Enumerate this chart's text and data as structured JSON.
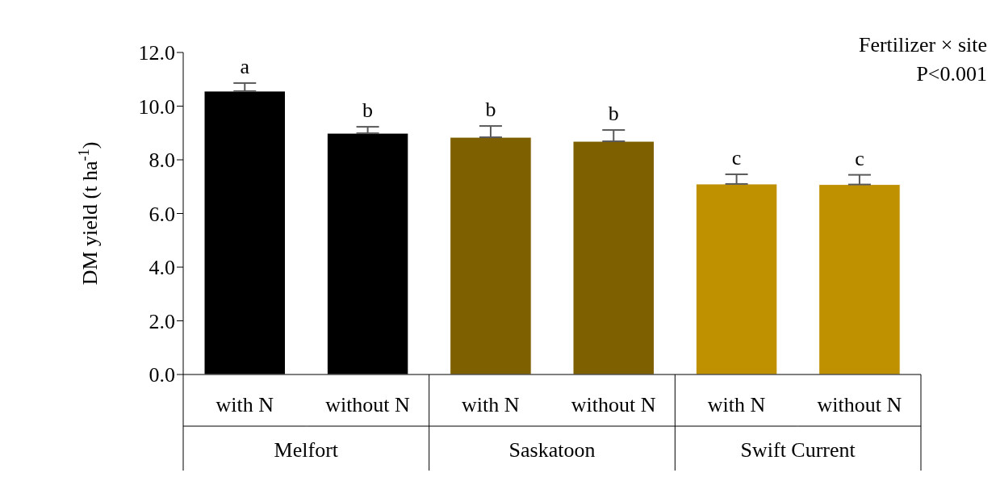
{
  "chart_data": {
    "type": "bar",
    "ylabel": "DM yield (t ha$^{-1}$)",
    "categories": [
      "with N",
      "without N",
      "with N",
      "without N",
      "with N",
      "without N"
    ],
    "values": [
      10.56,
      8.99,
      8.84,
      8.69,
      7.1,
      7.08
    ],
    "colors": [
      "#000000",
      "#000000",
      "#7f6000",
      "#7f6000",
      "#bf9000",
      "#bf9000"
    ],
    "errors": [
      [
        10.56,
        10.86
      ],
      [
        8.99,
        9.23
      ],
      [
        8.84,
        9.26
      ],
      [
        8.69,
        9.11
      ],
      [
        7.1,
        7.46
      ],
      [
        7.08,
        7.44
      ]
    ],
    "value_labels": [
      "a",
      "b",
      "b",
      "b",
      "c",
      "c"
    ],
    "ylim": [
      0,
      12
    ],
    "yticks": [
      {
        "value": 0,
        "label": "0.0"
      },
      {
        "value": 2,
        "label": "2.0"
      },
      {
        "value": 4,
        "label": "4.0"
      },
      {
        "value": 6,
        "label": "6.0"
      },
      {
        "value": 8,
        "label": "8.0"
      },
      {
        "value": 10,
        "label": "10.0"
      },
      {
        "value": 12,
        "label": "12.0"
      }
    ],
    "annotations": [
      "Melfort",
      "Saskatoon",
      "Swift Current",
      "Fertilizer × site",
      "P<0.001"
    ],
    "grid": false,
    "legend": false
  }
}
